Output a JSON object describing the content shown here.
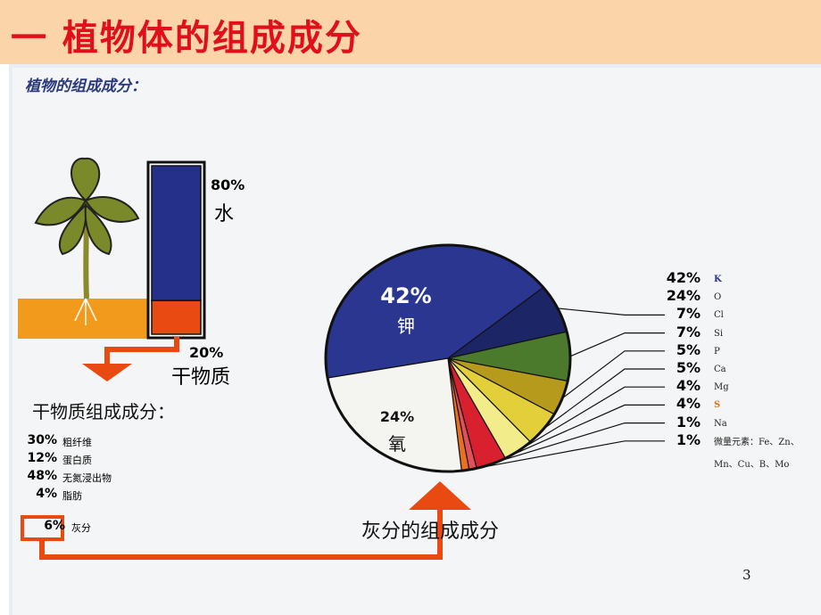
{
  "header": {
    "title": "一  植物体的组成成分"
  },
  "figure": {
    "caption": "植物的组成成分：",
    "plant_bar": {
      "values": [
        80,
        20
      ],
      "value_labels": [
        "80%",
        "20%"
      ],
      "names": [
        "水",
        "干物质"
      ],
      "colors": [
        "#25308a",
        "#e84a12"
      ]
    },
    "dry_matter": {
      "title": "干物质组成成分：",
      "items": [
        {
          "percent": "30%",
          "name": "粗纤维"
        },
        {
          "percent": "12%",
          "name": "蛋白质"
        },
        {
          "percent": "48%",
          "name": "无氮浸出物"
        },
        {
          "percent": "4%",
          "name": "脂肪"
        },
        {
          "percent": "6%",
          "name": "灰分"
        }
      ]
    },
    "ash_label": "灰分的组成成分"
  },
  "chart_data": {
    "type": "pie",
    "categories": [
      "K",
      "O",
      "Cl",
      "Si",
      "P",
      "Ca",
      "Mg",
      "S",
      "Na",
      "微量元素：Fe、Zn、Mn、Cu、B、Mo"
    ],
    "values": [
      42,
      24,
      7,
      7,
      5,
      5,
      4,
      4,
      1,
      1
    ],
    "value_labels": [
      "42%",
      "24%",
      "7%",
      "7%",
      "5%",
      "5%",
      "4%",
      "4%",
      "1%",
      "1%"
    ],
    "colors": [
      "#2a3690",
      "#f4f4f0",
      "#1c2566",
      "#4c7a2c",
      "#b59a1c",
      "#e2cf3a",
      "#f2ec8a",
      "#d8202e",
      "#e4505a",
      "#e8701e"
    ],
    "annotations": [
      {
        "value": "42%",
        "text": "钾"
      },
      {
        "value": "24%",
        "text": "氧"
      }
    ]
  },
  "page_number": "3"
}
